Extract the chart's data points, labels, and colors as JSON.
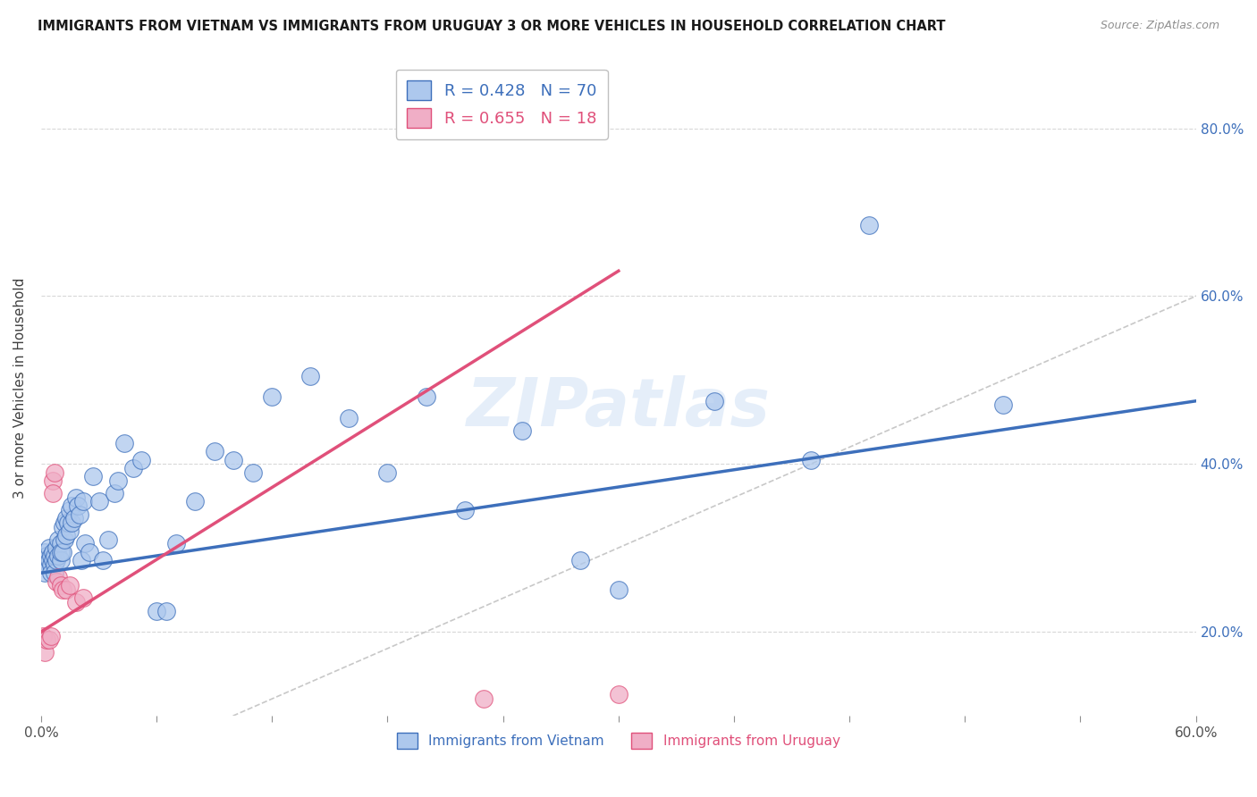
{
  "title": "IMMIGRANTS FROM VIETNAM VS IMMIGRANTS FROM URUGUAY 3 OR MORE VEHICLES IN HOUSEHOLD CORRELATION CHART",
  "source": "Source: ZipAtlas.com",
  "ylabel": "3 or more Vehicles in Household",
  "xlim": [
    0.0,
    0.6
  ],
  "ylim": [
    0.1,
    0.88
  ],
  "xticks": [
    0.0,
    0.06,
    0.12,
    0.18,
    0.24,
    0.3,
    0.36,
    0.42,
    0.48,
    0.54,
    0.6
  ],
  "yticks": [
    0.2,
    0.4,
    0.6,
    0.8
  ],
  "vietnam_R": 0.428,
  "vietnam_N": 70,
  "uruguay_R": 0.655,
  "uruguay_N": 18,
  "vietnam_color": "#adc8ed",
  "uruguay_color": "#f0aec6",
  "vietnam_line_color": "#3d6fbb",
  "uruguay_line_color": "#e0507a",
  "ref_line_color": "#c8c8c8",
  "vietnam_x": [
    0.001,
    0.002,
    0.002,
    0.003,
    0.003,
    0.004,
    0.004,
    0.005,
    0.005,
    0.005,
    0.006,
    0.006,
    0.007,
    0.007,
    0.007,
    0.008,
    0.008,
    0.009,
    0.009,
    0.01,
    0.01,
    0.01,
    0.011,
    0.011,
    0.012,
    0.012,
    0.013,
    0.013,
    0.014,
    0.015,
    0.015,
    0.016,
    0.016,
    0.017,
    0.018,
    0.019,
    0.02,
    0.021,
    0.022,
    0.023,
    0.025,
    0.027,
    0.03,
    0.032,
    0.035,
    0.038,
    0.04,
    0.043,
    0.048,
    0.052,
    0.06,
    0.065,
    0.07,
    0.08,
    0.09,
    0.1,
    0.11,
    0.12,
    0.14,
    0.16,
    0.18,
    0.2,
    0.22,
    0.25,
    0.28,
    0.3,
    0.35,
    0.4,
    0.43,
    0.5
  ],
  "vietnam_y": [
    0.285,
    0.27,
    0.295,
    0.28,
    0.29,
    0.285,
    0.3,
    0.28,
    0.29,
    0.27,
    0.295,
    0.285,
    0.28,
    0.29,
    0.27,
    0.3,
    0.285,
    0.31,
    0.29,
    0.305,
    0.285,
    0.295,
    0.325,
    0.295,
    0.31,
    0.33,
    0.315,
    0.335,
    0.33,
    0.345,
    0.32,
    0.35,
    0.33,
    0.335,
    0.36,
    0.35,
    0.34,
    0.285,
    0.355,
    0.305,
    0.295,
    0.385,
    0.355,
    0.285,
    0.31,
    0.365,
    0.38,
    0.425,
    0.395,
    0.405,
    0.225,
    0.225,
    0.305,
    0.355,
    0.415,
    0.405,
    0.39,
    0.48,
    0.505,
    0.455,
    0.39,
    0.48,
    0.345,
    0.44,
    0.285,
    0.25,
    0.475,
    0.405,
    0.685,
    0.47
  ],
  "uruguay_x": [
    0.001,
    0.002,
    0.003,
    0.004,
    0.005,
    0.006,
    0.006,
    0.007,
    0.008,
    0.009,
    0.01,
    0.011,
    0.013,
    0.015,
    0.018,
    0.022,
    0.23,
    0.3
  ],
  "uruguay_y": [
    0.195,
    0.175,
    0.19,
    0.19,
    0.195,
    0.38,
    0.365,
    0.39,
    0.26,
    0.265,
    0.255,
    0.25,
    0.25,
    0.255,
    0.235,
    0.24,
    0.12,
    0.125
  ],
  "vietnam_trend": [
    0.0,
    0.6,
    0.27,
    0.475
  ],
  "uruguay_trend": [
    0.0,
    0.3,
    0.2,
    0.63
  ],
  "ref_line": [
    0.0,
    0.85,
    0.0,
    0.85
  ]
}
